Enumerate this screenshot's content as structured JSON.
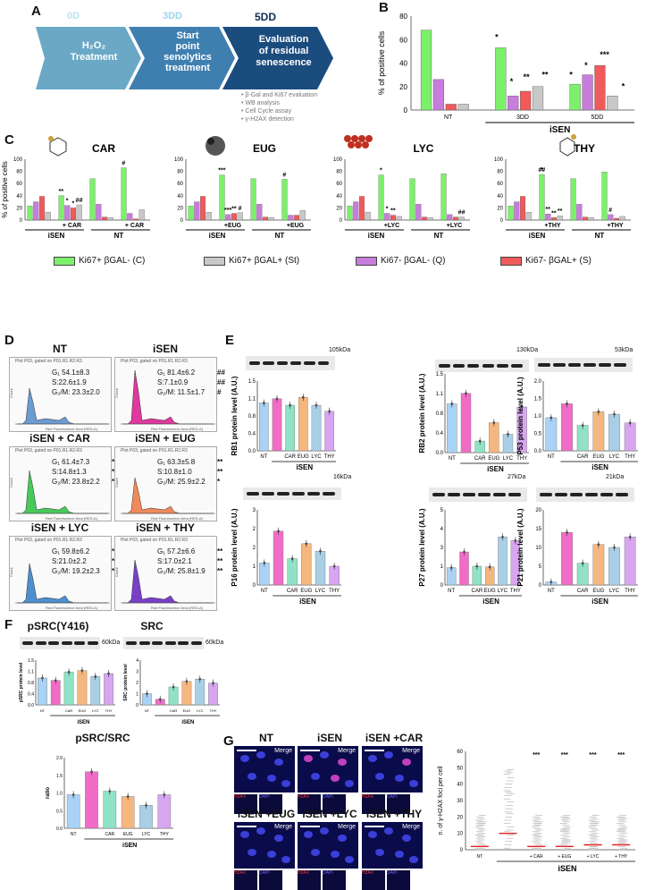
{
  "panels": {
    "A": "A",
    "B": "B",
    "C": "C",
    "D": "D",
    "E": "E",
    "F": "F",
    "G": "G"
  },
  "timeline": {
    "steps": [
      {
        "day": "0D",
        "label1": "H₂O₂",
        "label2": "Treatment",
        "color": "#6aa8c6"
      },
      {
        "day": "3DD",
        "label1": "Start",
        "label2": "point",
        "label3": "senolytics",
        "label4": "treatment",
        "color": "#3f7fb0"
      },
      {
        "day": "5DD",
        "label1": "Evaluation",
        "label2": "of residual",
        "label3": "senescence",
        "color": "#1b4c7e"
      }
    ],
    "bullets": [
      "β-Gal and Ki67 evaluation",
      "WB analysis",
      "Cell Cycle assay",
      "γ-H2AX detection"
    ]
  },
  "legend": [
    {
      "label": "Ki67+ βGAL- (C)",
      "color": "#7cf06a"
    },
    {
      "label": "Ki67+ βGAL+ (St)",
      "color": "#c8c8c8"
    },
    {
      "label": "Ki67- βGAL- (Q)",
      "color": "#c77ddb"
    },
    {
      "label": "Ki67- βGAL+ (S)",
      "color": "#f05a5a"
    }
  ],
  "chart_data": [
    {
      "id": "B",
      "type": "bar",
      "ylabel": "% of positive cells",
      "ylim": [
        0,
        80
      ],
      "yticks": [
        0,
        20,
        40,
        60,
        80
      ],
      "groups": [
        "NT",
        "3DD",
        "5DD"
      ],
      "xlabel": "iSEN",
      "series": [
        {
          "name": "Ki67+ βGAL- (C)",
          "values": [
            68,
            53,
            22
          ]
        },
        {
          "name": "Ki67- βGAL- (Q)",
          "values": [
            26,
            12,
            30
          ]
        },
        {
          "name": "Ki67- βGAL+ (S)",
          "values": [
            5,
            16,
            38
          ]
        },
        {
          "name": "Ki67+ βGAL+ (St)",
          "values": [
            5,
            20,
            12
          ]
        }
      ],
      "annotations": [
        "*",
        "*",
        "**",
        "**",
        "*",
        "*",
        "***",
        "*"
      ]
    },
    {
      "id": "C-CAR",
      "type": "bar",
      "title": "CAR",
      "ylabel": "% of positive cells",
      "ylim": [
        0,
        100
      ],
      "yticks": [
        0,
        20,
        40,
        60,
        80,
        100
      ],
      "categories": [
        "iSEN",
        "+ CAR",
        "NT",
        "+ CAR"
      ],
      "series": [
        {
          "name": "Ki67+ βGAL- (C)",
          "values": [
            23,
            40,
            68,
            86
          ]
        },
        {
          "name": "Ki67- βGAL- (Q)",
          "values": [
            30,
            24,
            26,
            11
          ]
        },
        {
          "name": "Ki67- βGAL+ (S)",
          "values": [
            39,
            20,
            5,
            2
          ]
        },
        {
          "name": "Ki67+ βGAL+ (St)",
          "values": [
            13,
            25,
            4,
            17
          ]
        }
      ],
      "annotations": [
        "**",
        "*",
        "*",
        "##",
        "#"
      ]
    },
    {
      "id": "C-EUG",
      "type": "bar",
      "title": "EUG",
      "ylim": [
        0,
        100
      ],
      "categories": [
        "iSEN",
        "+EUG",
        "NT",
        "+EUG"
      ],
      "series": [
        {
          "name": "Ki67+ βGAL- (C)",
          "values": [
            23,
            74,
            68,
            67
          ]
        },
        {
          "name": "Ki67- βGAL- (Q)",
          "values": [
            30,
            9,
            26,
            8
          ]
        },
        {
          "name": "Ki67- βGAL+ (S)",
          "values": [
            39,
            11,
            5,
            8
          ]
        },
        {
          "name": "Ki67+ βGAL+ (St)",
          "values": [
            13,
            12,
            4,
            16
          ]
        }
      ],
      "annotations": [
        "***",
        "***",
        "**",
        "#",
        "#"
      ]
    },
    {
      "id": "C-LYC",
      "type": "bar",
      "title": "LYC",
      "ylim": [
        0,
        100
      ],
      "categories": [
        "iSEN",
        "+LYC",
        "NT",
        "+LYC"
      ],
      "series": [
        {
          "name": "Ki67+ βGAL- (C)",
          "values": [
            23,
            74,
            68,
            76
          ]
        },
        {
          "name": "Ki67- βGAL- (Q)",
          "values": [
            30,
            11,
            26,
            9
          ]
        },
        {
          "name": "Ki67- βGAL+ (S)",
          "values": [
            39,
            8,
            5,
            5
          ]
        },
        {
          "name": "Ki67+ βGAL+ (St)",
          "values": [
            13,
            6,
            4,
            5
          ]
        }
      ],
      "annotations": [
        "*",
        "*",
        "**",
        "##"
      ]
    },
    {
      "id": "C-THY",
      "type": "bar",
      "title": "THY",
      "ylim": [
        0,
        100
      ],
      "categories": [
        "iSEN",
        "+THY",
        "NT",
        "+THY"
      ],
      "series": [
        {
          "name": "Ki67+ βGAL- (C)",
          "values": [
            23,
            75,
            68,
            79
          ]
        },
        {
          "name": "Ki67- βGAL- (Q)",
          "values": [
            30,
            10,
            26,
            9
          ]
        },
        {
          "name": "Ki67- βGAL+ (S)",
          "values": [
            39,
            4,
            5,
            3
          ]
        },
        {
          "name": "Ki67+ βGAL+ (St)",
          "values": [
            13,
            7,
            4,
            6
          ]
        }
      ],
      "annotations": [
        "*",
        "**",
        "**",
        "**",
        "##",
        "#"
      ]
    },
    {
      "id": "E-RB1",
      "type": "bar",
      "ylabel": "RB1 protein level (A.U.)",
      "ylim": [
        0,
        1.5
      ],
      "yticks": [
        "0.0",
        "0.5",
        "1.0",
        "1.5"
      ],
      "categories": [
        "NT",
        "",
        "CAR",
        "EUG",
        "LYC",
        "THY"
      ],
      "values": [
        1.03,
        1.12,
        0.98,
        1.15,
        0.98,
        0.85
      ]
    },
    {
      "id": "E-RB2",
      "type": "bar",
      "ylabel": "RB2 protein level (A.U.)",
      "ylim": [
        0,
        1.5
      ],
      "categories": [
        "NT",
        "",
        "CAR",
        "EUG",
        "LYC",
        "THY"
      ],
      "values": [
        0.93,
        1.13,
        0.22,
        0.57,
        0.35,
        0.87
      ]
    },
    {
      "id": "E-P53",
      "type": "bar",
      "ylabel": "P53 protein level (A.U.)",
      "ylim": [
        0,
        2.0
      ],
      "categories": [
        "NT",
        "",
        "CAR",
        "EUG",
        "LYC",
        "THY"
      ],
      "values": [
        0.95,
        1.35,
        0.73,
        1.12,
        1.05,
        0.8
      ]
    },
    {
      "id": "E-P16",
      "type": "bar",
      "ylabel": "P16 protein level (A.U.)",
      "ylim": [
        0,
        3
      ],
      "categories": [
        "NT",
        "",
        "CAR",
        "EUG",
        "LYC",
        "THY"
      ],
      "values": [
        0.88,
        2.15,
        1.05,
        1.65,
        1.35,
        0.75
      ]
    },
    {
      "id": "E-P27",
      "type": "bar",
      "ylabel": "P27 protein level (A.U.)",
      "ylim": [
        0,
        5
      ],
      "categories": [
        "NT",
        "",
        "CAR",
        "EUG",
        "LYC",
        "THY"
      ],
      "values": [
        1.15,
        2.2,
        1.25,
        1.2,
        3.2,
        2.95
      ]
    },
    {
      "id": "E-P21",
      "type": "bar",
      "ylabel": "P21 protein level (A.U.)",
      "ylim": [
        0,
        20
      ],
      "categories": [
        "NT",
        "",
        "CAR",
        "EUG",
        "LYC",
        "THY"
      ],
      "values": [
        0.8,
        14.0,
        5.8,
        10.8,
        10.0,
        12.8
      ]
    },
    {
      "id": "F-pSRC",
      "type": "bar",
      "ylabel": "pSRC protein level",
      "ylim": [
        0,
        1.5
      ],
      "categories": [
        "NT",
        "",
        "CAR",
        "EUG",
        "LYC",
        "THY"
      ],
      "values": [
        0.9,
        0.82,
        1.1,
        1.15,
        0.95,
        1.05
      ]
    },
    {
      "id": "F-SRC",
      "type": "bar",
      "ylabel": "SRC protein level",
      "ylim": [
        0,
        4
      ],
      "categories": [
        "NT",
        "",
        "CAR",
        "EUG",
        "LYC",
        "THY"
      ],
      "values": [
        1.0,
        0.5,
        1.6,
        2.1,
        2.3,
        1.95
      ]
    },
    {
      "id": "F-ratio",
      "type": "bar",
      "ylabel": "ratio",
      "ylim": [
        0,
        2.0
      ],
      "categories": [
        "NT",
        "",
        "CAR",
        "EUG",
        "LYC",
        "THY"
      ],
      "values": [
        0.95,
        1.6,
        1.05,
        0.9,
        0.65,
        0.95
      ]
    },
    {
      "id": "G-foci",
      "type": "scatter",
      "ylabel": "n. of γ-H2AX foci per cell",
      "ylim": [
        0,
        60
      ],
      "yticks": [
        0,
        10,
        20,
        30,
        40,
        50,
        60
      ],
      "categories": [
        "NT",
        "",
        "+ CAR",
        "+ EUG",
        "+ LYC",
        "+ THY"
      ],
      "medians": [
        2,
        10,
        2,
        2,
        3,
        3
      ],
      "annotations": [
        "***",
        "***",
        "***",
        "***"
      ]
    }
  ],
  "C_group_labels": {
    "isen": "iSEN",
    "nt": "NT"
  },
  "E": {
    "kda": [
      "105kDa",
      "130kDa",
      "53kDa",
      "16kDa",
      "27kDa",
      "21kDa"
    ],
    "x_group": "iSEN",
    "sig": [
      "*",
      "****",
      "****",
      "****",
      "***",
      "****",
      "*",
      "*",
      "**",
      "****",
      "****",
      "**",
      "****",
      "****",
      "*",
      "*",
      "*",
      "****",
      "****",
      "**",
      "***"
    ]
  },
  "F": {
    "titles": {
      "psrc": "pSRC(Y416)",
      "src": "SRC",
      "ratio": "pSRC/SRC"
    },
    "kda": [
      "60kDa",
      "60kDa"
    ],
    "x_group": "iSEN",
    "sig": [
      "*",
      "****",
      "****",
      "****",
      "****",
      "***",
      "****",
      "***",
      "***",
      "**"
    ]
  },
  "D": {
    "panels": [
      {
        "title": "NT",
        "color": "#6a9bd1",
        "g1": "G₁ 54.1±8.3",
        "s": "S:22.6±1.9",
        "g2": "G₂/M: 23.3±2.0",
        "sig": [
          "",
          "",
          ""
        ]
      },
      {
        "title": "iSEN",
        "color": "#e0389f",
        "g1": "G₁ 81.4±6.2",
        "s": "S:7.1±0.9",
        "g2": "G₂/M: 11.5±1.7",
        "sig": [
          "##",
          "##",
          "#"
        ]
      },
      {
        "title": "iSEN + CAR",
        "color": "#48c95a",
        "g1": "G₁ 61.4±7.3",
        "s": "S:14.8±1.3",
        "g2": "G₂/M: 23.8±2.2",
        "sig": [
          "**",
          "**",
          "*"
        ]
      },
      {
        "title": "iSEN + EUG",
        "color": "#f08a5a",
        "g1": "G₁ 63.3±5.8",
        "s": "S:10.8±1.0",
        "g2": "G₂/M: 25.9±2.2",
        "sig": [
          "**",
          "**",
          "*"
        ]
      },
      {
        "title": "iSEN + LYC",
        "color": "#4e8fd0",
        "g1": "G₁ 59.8±6.2",
        "s": "S:21.0±2.2",
        "g2": "G₂/M: 19.2±2.3",
        "sig": [
          "**",
          "**",
          "*"
        ]
      },
      {
        "title": "iSEN + THY",
        "color": "#7a3fc8",
        "g1": "G₁ 57.2±6.6",
        "s": "S:17.0±2.1",
        "g2": "G₂/M: 25.8±1.9",
        "sig": [
          "**",
          "**",
          "**"
        ]
      }
    ],
    "header": "Plot P03, gated on P01.R1.R2.R3",
    "xaxis": "Red Fluorescence Area (RED-A)",
    "yaxis": "Count"
  },
  "G": {
    "panels": [
      "NT",
      "iSEN",
      "iSEN +CAR",
      "iSEN +EUG",
      "iSEN +LYC",
      "iSEN +THY"
    ],
    "merge": "Merge",
    "ch1": "H2AX",
    "ch2": "DAPI",
    "x_group": "iSEN"
  }
}
